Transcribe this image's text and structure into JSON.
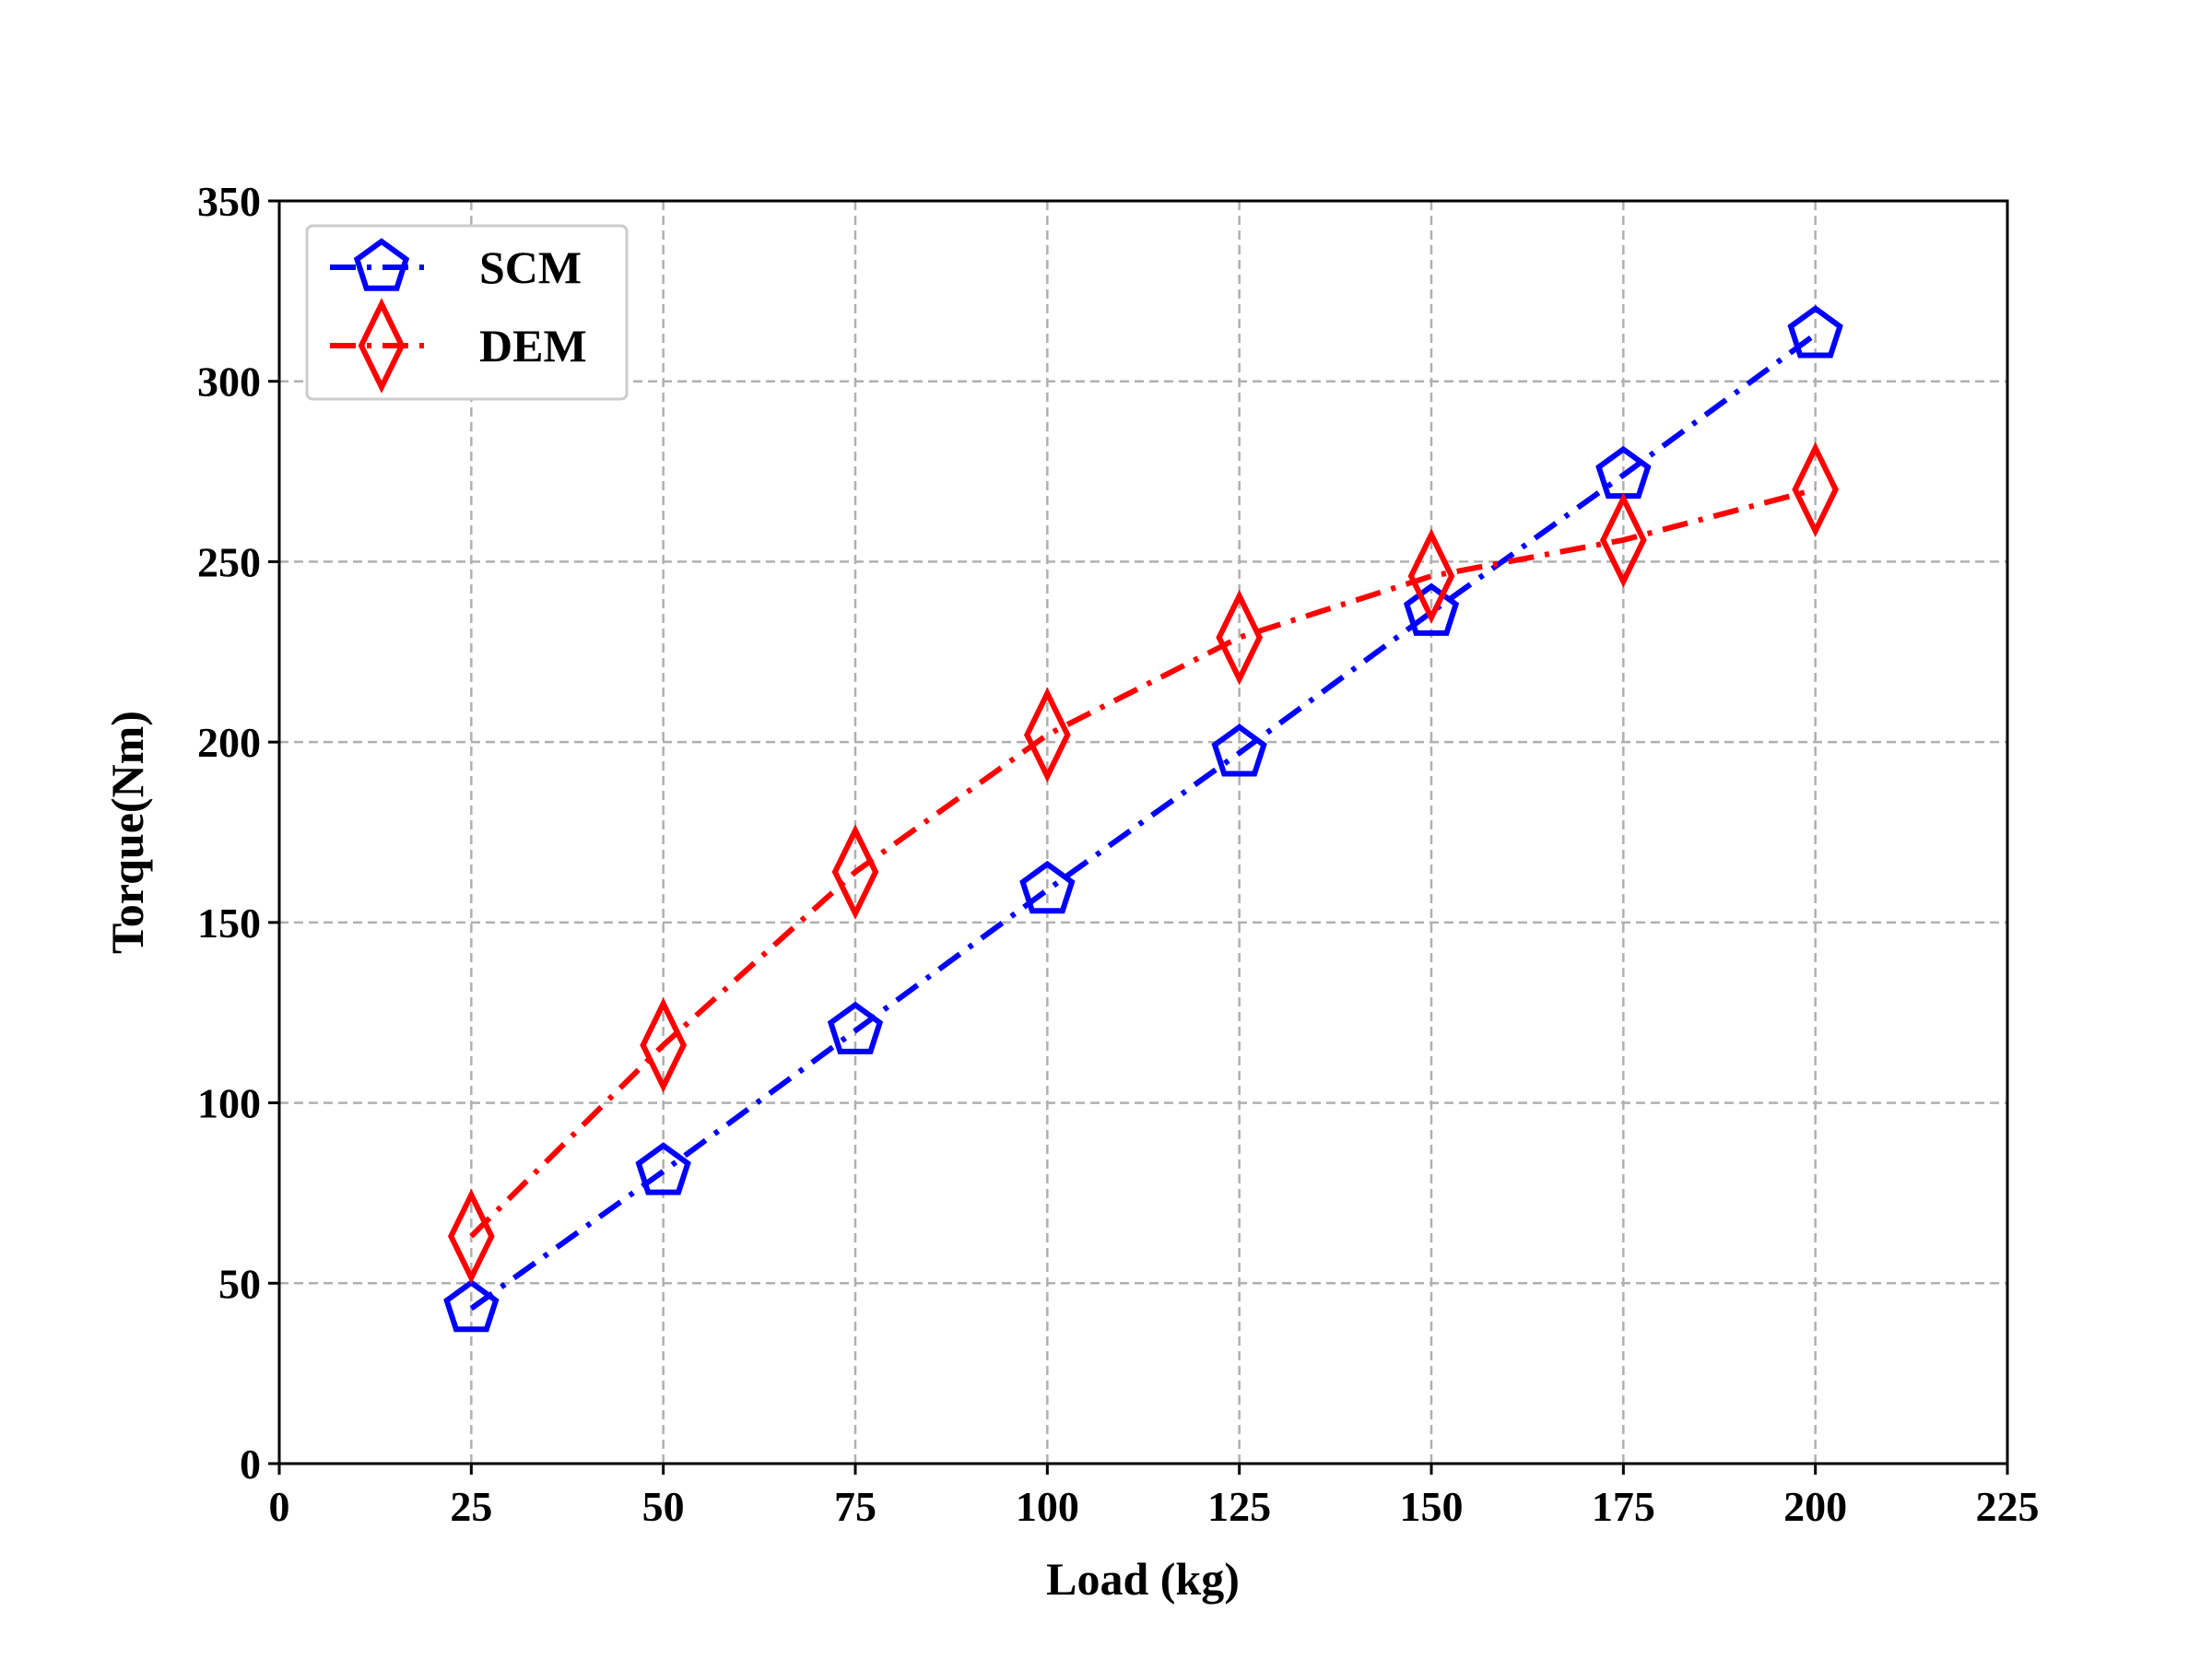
{
  "chart_data": {
    "type": "line",
    "xlabel": "Load (kg)",
    "ylabel": "Torque(Nm)",
    "xlim": [
      0,
      225
    ],
    "ylim": [
      0,
      350
    ],
    "xticks": [
      0,
      25,
      50,
      75,
      100,
      125,
      150,
      175,
      200,
      225
    ],
    "yticks": [
      0,
      50,
      100,
      150,
      200,
      250,
      300,
      350
    ],
    "grid": true,
    "legend_position": "top-left",
    "x": [
      25,
      50,
      75,
      100,
      125,
      150,
      175,
      200
    ],
    "series": [
      {
        "name": "SCM",
        "color": "#0000ff",
        "marker": "pentagon",
        "line_style": "dash-dot",
        "values": [
          43,
          81,
          120,
          159,
          197,
          236,
          274,
          313
        ]
      },
      {
        "name": "DEM",
        "color": "#ff0000",
        "marker": "thin-diamond",
        "line_style": "dash-dot",
        "values": [
          63,
          116,
          164,
          202,
          229,
          246,
          256,
          270
        ]
      }
    ]
  }
}
